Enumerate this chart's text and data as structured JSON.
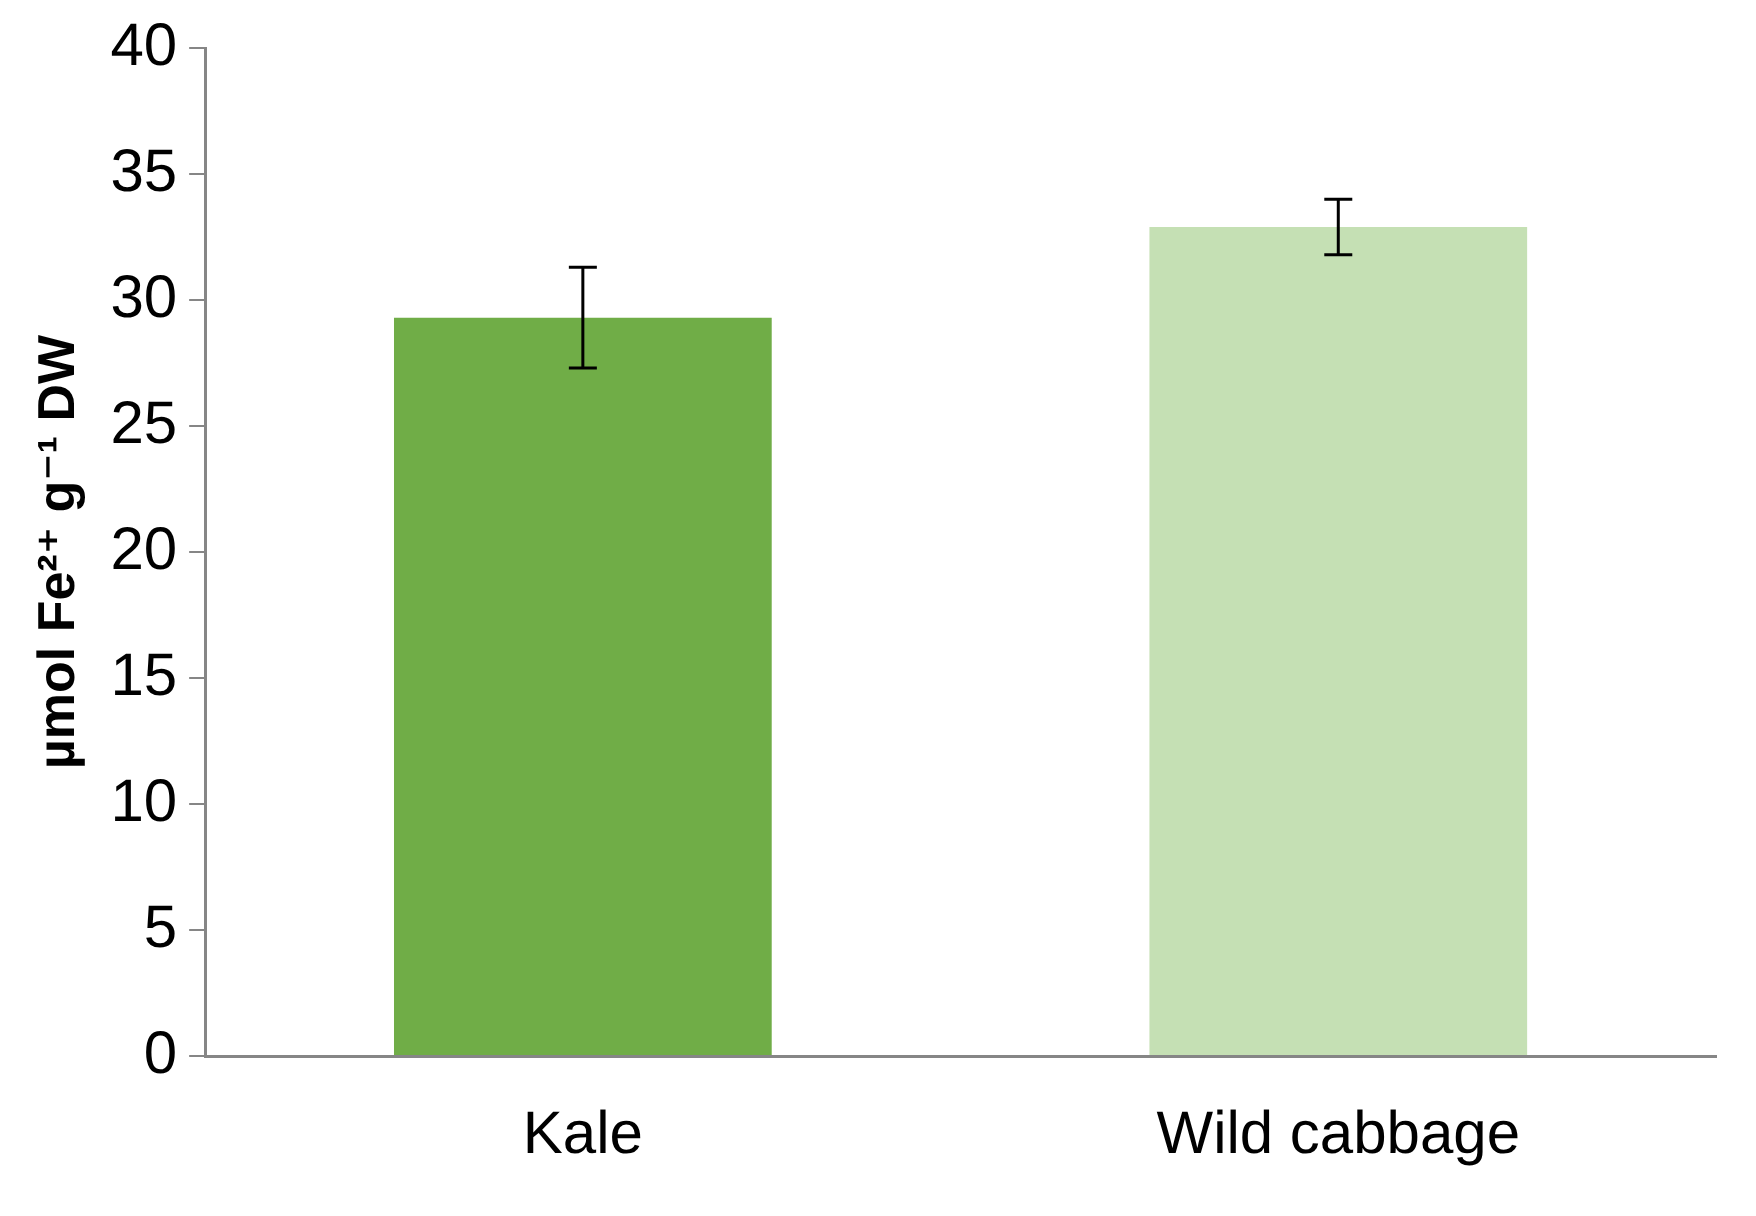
{
  "chart_data": {
    "type": "bar",
    "ylabel": "µmol Fe²⁺ g⁻¹ DW",
    "categories": [
      "Kale",
      "Wild cabbage"
    ],
    "values": [
      29.3,
      32.9
    ],
    "colors": [
      "#70ad47",
      "#c5e0b4"
    ],
    "errors": [
      2.0,
      1.1
    ],
    "ylim": [
      0,
      40
    ],
    "yticks": [
      0,
      5,
      10,
      15,
      20,
      25,
      30,
      35,
      40
    ],
    "grid": false,
    "legend": false
  }
}
